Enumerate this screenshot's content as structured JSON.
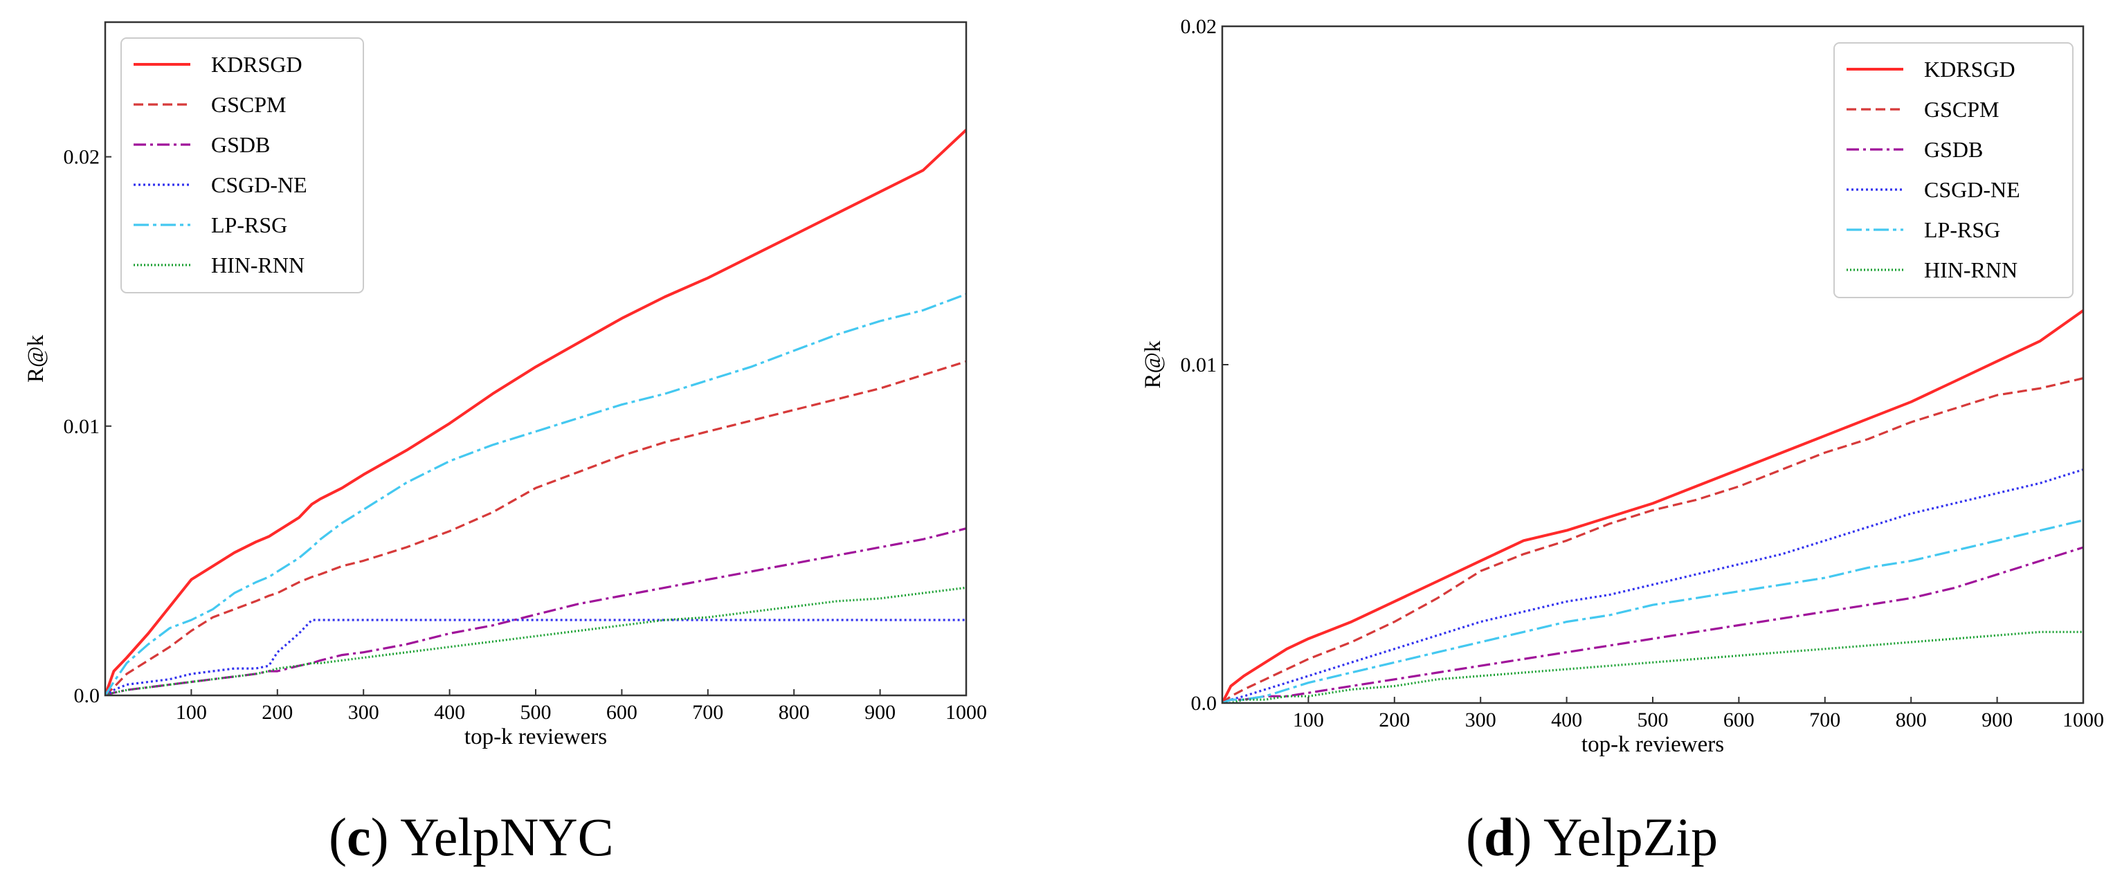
{
  "chart_data": [
    {
      "type": "line",
      "caption_letter": "c",
      "caption_text": "YelpNYC",
      "xlabel": "top-k reviewers",
      "ylabel": "R@k",
      "xlim": [
        0,
        1000
      ],
      "ylim": [
        0,
        0.025
      ],
      "xticks": [
        100,
        200,
        300,
        400,
        500,
        600,
        700,
        800,
        900,
        1000
      ],
      "xtick_labels": [
        "100",
        "200",
        "300",
        "400",
        "500",
        "600",
        "700",
        "800",
        "900",
        "1000"
      ],
      "yticks": [
        0,
        0.01,
        0.02
      ],
      "ytick_labels": [
        "0.0",
        "0.01",
        "0.02"
      ],
      "legend_position": "top-left",
      "x": [
        0,
        10,
        25,
        50,
        75,
        100,
        125,
        150,
        175,
        190,
        200,
        225,
        240,
        250,
        275,
        300,
        350,
        400,
        450,
        500,
        550,
        600,
        650,
        700,
        750,
        800,
        850,
        900,
        950,
        1000
      ],
      "series": [
        {
          "name": "KDRSGD",
          "color": "#ff2a2a",
          "dash": "solid",
          "values": [
            0,
            0.0009,
            0.0014,
            0.0023,
            0.0033,
            0.0043,
            0.0048,
            0.0053,
            0.0057,
            0.0059,
            0.0061,
            0.0066,
            0.0071,
            0.0073,
            0.0077,
            0.0082,
            0.0091,
            0.0101,
            0.0112,
            0.0122,
            0.0131,
            0.014,
            0.0148,
            0.0155,
            0.0163,
            0.0171,
            0.0179,
            0.0187,
            0.0195,
            0.021
          ]
        },
        {
          "name": "GSCPM",
          "color": "#d63a3a",
          "dash": "dashed",
          "values": [
            0,
            0.0003,
            0.0008,
            0.0013,
            0.0018,
            0.0024,
            0.0029,
            0.0032,
            0.0035,
            0.0037,
            0.0038,
            0.0042,
            0.0044,
            0.0045,
            0.0048,
            0.005,
            0.0055,
            0.0061,
            0.0068,
            0.0077,
            0.0083,
            0.0089,
            0.0094,
            0.0098,
            0.0102,
            0.0106,
            0.011,
            0.0114,
            0.0119,
            0.0124
          ]
        },
        {
          "name": "GSDB",
          "color": "#a0149a",
          "dash": "dashdot",
          "values": [
            0,
            0.0001,
            0.0002,
            0.0003,
            0.0004,
            0.0005,
            0.0006,
            0.0007,
            0.0008,
            0.0009,
            0.0009,
            0.0011,
            0.0012,
            0.0013,
            0.0015,
            0.0016,
            0.0019,
            0.0023,
            0.0026,
            0.003,
            0.0034,
            0.0037,
            0.004,
            0.0043,
            0.0046,
            0.0049,
            0.0052,
            0.0055,
            0.0058,
            0.0062
          ]
        },
        {
          "name": "CSGD-NE",
          "color": "#3333ee",
          "dash": "dotted",
          "values": [
            0,
            0.0002,
            0.0004,
            0.0005,
            0.0006,
            0.0008,
            0.0009,
            0.001,
            0.001,
            0.0011,
            0.0016,
            0.0023,
            0.0028,
            0.0028,
            0.0028,
            0.0028,
            0.0028,
            0.0028,
            0.0028,
            0.0028,
            0.0028,
            0.0028,
            0.0028,
            0.0028,
            0.0028,
            0.0028,
            0.0028,
            0.0028,
            0.0028,
            0.0028
          ]
        },
        {
          "name": "LP-RSG",
          "color": "#44c8f0",
          "dash": "longdashdot",
          "values": [
            0,
            0.0005,
            0.0012,
            0.0019,
            0.0025,
            0.0028,
            0.0032,
            0.0038,
            0.0042,
            0.0044,
            0.0046,
            0.0051,
            0.0055,
            0.0058,
            0.0064,
            0.0069,
            0.0079,
            0.0087,
            0.0093,
            0.0098,
            0.0103,
            0.0108,
            0.0112,
            0.0117,
            0.0122,
            0.0128,
            0.0134,
            0.0139,
            0.0143,
            0.0149
          ]
        },
        {
          "name": "HIN-RNN",
          "color": "#1aa032",
          "dash": "densedotted",
          "values": [
            0,
            0.0001,
            0.0002,
            0.0003,
            0.0004,
            0.0005,
            0.0006,
            0.0007,
            0.0008,
            0.0009,
            0.001,
            0.0011,
            0.0012,
            0.0012,
            0.0013,
            0.0014,
            0.0016,
            0.0018,
            0.002,
            0.0022,
            0.0024,
            0.0026,
            0.0028,
            0.0029,
            0.0031,
            0.0033,
            0.0035,
            0.0036,
            0.0038,
            0.004
          ]
        }
      ]
    },
    {
      "type": "line",
      "caption_letter": "d",
      "caption_text": "YelpZip",
      "xlabel": "top-k reviewers",
      "ylabel": "R@k",
      "xlim": [
        0,
        1000
      ],
      "ylim": [
        0,
        0.02
      ],
      "xticks": [
        100,
        200,
        300,
        400,
        500,
        600,
        700,
        800,
        900,
        1000
      ],
      "xtick_labels": [
        "100",
        "200",
        "300",
        "400",
        "500",
        "600",
        "700",
        "800",
        "900",
        "1000"
      ],
      "yticks": [
        0,
        0.01,
        0.02
      ],
      "ytick_labels": [
        "0.0",
        "0.01",
        "0.02"
      ],
      "legend_position": "top-right",
      "x": [
        0,
        10,
        25,
        50,
        75,
        100,
        150,
        200,
        250,
        300,
        350,
        400,
        450,
        500,
        550,
        600,
        650,
        700,
        750,
        800,
        850,
        900,
        950,
        1000
      ],
      "series": [
        {
          "name": "KDRSGD",
          "color": "#ff2a2a",
          "dash": "solid",
          "values": [
            0,
            0.0005,
            0.0008,
            0.0012,
            0.0016,
            0.0019,
            0.0024,
            0.003,
            0.0036,
            0.0042,
            0.0048,
            0.0051,
            0.0055,
            0.0059,
            0.0064,
            0.0069,
            0.0074,
            0.0079,
            0.0084,
            0.0089,
            0.0095,
            0.0101,
            0.0107,
            0.0116
          ]
        },
        {
          "name": "GSCPM",
          "color": "#d63a3a",
          "dash": "dashed",
          "values": [
            0,
            0.0002,
            0.0004,
            0.0007,
            0.001,
            0.0013,
            0.0018,
            0.0024,
            0.0031,
            0.0039,
            0.0044,
            0.0048,
            0.0053,
            0.0057,
            0.006,
            0.0064,
            0.0069,
            0.0074,
            0.0078,
            0.0083,
            0.0087,
            0.0091,
            0.0093,
            0.0096
          ]
        },
        {
          "name": "GSDB",
          "color": "#a0149a",
          "dash": "dashdot",
          "values": [
            0,
            0.0001,
            0.0001,
            0.0002,
            0.0002,
            0.0003,
            0.0005,
            0.0007,
            0.0009,
            0.0011,
            0.0013,
            0.0015,
            0.0017,
            0.0019,
            0.0021,
            0.0023,
            0.0025,
            0.0027,
            0.0029,
            0.0031,
            0.0034,
            0.0038,
            0.0042,
            0.0046
          ]
        },
        {
          "name": "CSGD-NE",
          "color": "#3333ee",
          "dash": "dotted",
          "values": [
            0,
            0.0001,
            0.0002,
            0.0004,
            0.0006,
            0.0008,
            0.0012,
            0.0016,
            0.002,
            0.0024,
            0.0027,
            0.003,
            0.0032,
            0.0035,
            0.0038,
            0.0041,
            0.0044,
            0.0048,
            0.0052,
            0.0056,
            0.0059,
            0.0062,
            0.0065,
            0.0069
          ]
        },
        {
          "name": "LP-RSG",
          "color": "#44c8f0",
          "dash": "longdashdot",
          "values": [
            0,
            0.0001,
            0.0001,
            0.0002,
            0.0004,
            0.0006,
            0.0009,
            0.0012,
            0.0015,
            0.0018,
            0.0021,
            0.0024,
            0.0026,
            0.0029,
            0.0031,
            0.0033,
            0.0035,
            0.0037,
            0.004,
            0.0042,
            0.0045,
            0.0048,
            0.0051,
            0.0054
          ]
        },
        {
          "name": "HIN-RNN",
          "color": "#1aa032",
          "dash": "densedotted",
          "values": [
            0,
            0.0,
            0.0001,
            0.0001,
            0.0002,
            0.0002,
            0.0004,
            0.0005,
            0.0007,
            0.0008,
            0.0009,
            0.001,
            0.0011,
            0.0012,
            0.0013,
            0.0014,
            0.0015,
            0.0016,
            0.0017,
            0.0018,
            0.0019,
            0.002,
            0.0021,
            0.0021
          ]
        }
      ]
    }
  ]
}
